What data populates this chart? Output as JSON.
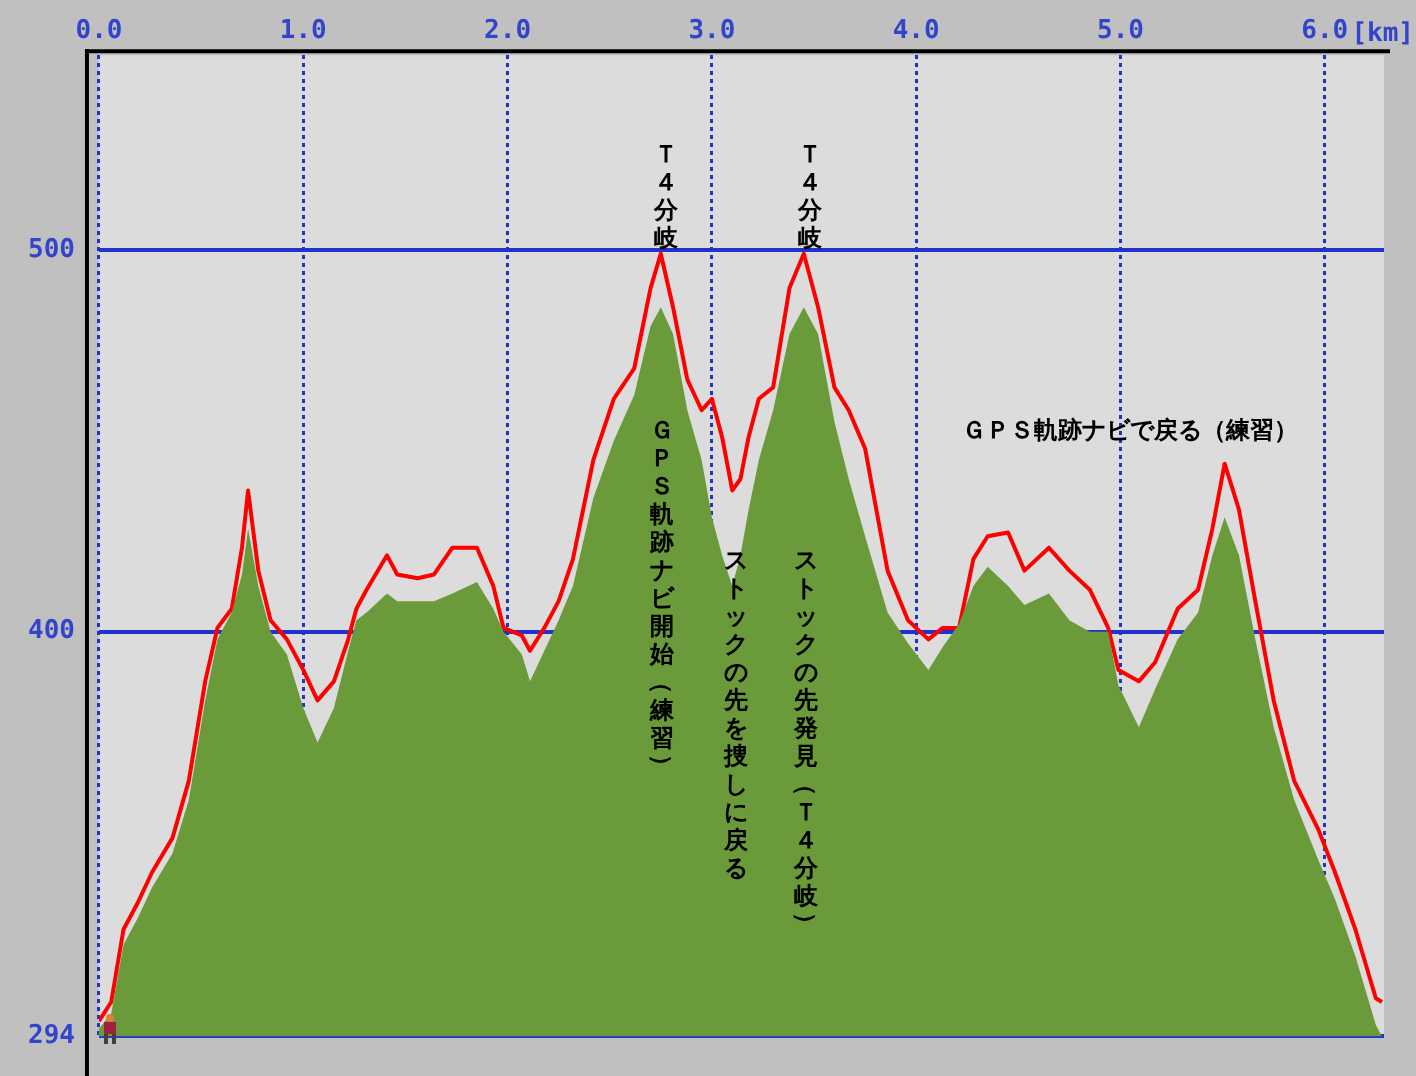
{
  "chart_data": {
    "type": "area",
    "xlabel": "[km]",
    "xlim": [
      0,
      6.29
    ],
    "xticks": [
      {
        "value": 0,
        "label": "0.0"
      },
      {
        "value": 1,
        "label": "1.0"
      },
      {
        "value": 2,
        "label": "2.0"
      },
      {
        "value": 3,
        "label": "3.0"
      },
      {
        "value": 4,
        "label": "4.0"
      },
      {
        "value": 5,
        "label": "5.0"
      },
      {
        "value": 6,
        "label": "6.0"
      }
    ],
    "ylim": [
      294,
      551
    ],
    "yticks": [
      294,
      400,
      500
    ],
    "grid": true,
    "legend": false,
    "series": [
      {
        "type": "area",
        "color": "#6a9a3a",
        "x": [
          0,
          0.06,
          0.12,
          0.19,
          0.26,
          0.36,
          0.44,
          0.52,
          0.58,
          0.65,
          0.7,
          0.73,
          0.78,
          0.84,
          0.92,
          1.0,
          1.07,
          1.15,
          1.22,
          1.26,
          1.31,
          1.41,
          1.46,
          1.56,
          1.64,
          1.73,
          1.85,
          1.93,
          1.98,
          2.07,
          2.11,
          2.18,
          2.25,
          2.32,
          2.42,
          2.52,
          2.62,
          2.7,
          2.75,
          2.81,
          2.88,
          2.95,
          3.0,
          3.05,
          3.1,
          3.14,
          3.18,
          3.23,
          3.3,
          3.38,
          3.45,
          3.52,
          3.6,
          3.67,
          3.75,
          3.86,
          3.96,
          4.06,
          4.13,
          4.21,
          4.28,
          4.35,
          4.45,
          4.53,
          4.65,
          4.75,
          4.85,
          4.94,
          4.99,
          5.09,
          5.17,
          5.28,
          5.38,
          5.45,
          5.51,
          5.58,
          5.66,
          5.75,
          5.85,
          5.97,
          6.05,
          6.15,
          6.25,
          6.28
        ],
        "values": [
          296,
          300,
          318,
          325,
          333,
          342,
          356,
          382,
          398,
          405,
          415,
          427,
          412,
          400,
          394,
          380,
          371,
          380,
          395,
          403,
          405,
          410,
          408,
          408,
          408,
          410,
          413,
          406,
          400,
          394,
          387,
          395,
          403,
          412,
          435,
          450,
          462,
          480,
          485,
          478,
          458,
          445,
          430,
          420,
          412,
          420,
          432,
          445,
          458,
          478,
          485,
          478,
          455,
          440,
          425,
          405,
          397,
          390,
          396,
          402,
          412,
          417,
          412,
          407,
          410,
          403,
          400,
          400,
          386,
          375,
          385,
          398,
          405,
          420,
          430,
          420,
          398,
          375,
          356,
          340,
          330,
          315,
          297,
          294
        ]
      },
      {
        "type": "line",
        "color": "#ff0000",
        "marker": "none",
        "line_style": "solid",
        "x": [
          0,
          0.06,
          0.12,
          0.19,
          0.26,
          0.36,
          0.44,
          0.52,
          0.58,
          0.65,
          0.7,
          0.73,
          0.78,
          0.84,
          0.92,
          1.0,
          1.07,
          1.15,
          1.22,
          1.26,
          1.31,
          1.41,
          1.46,
          1.56,
          1.64,
          1.73,
          1.85,
          1.93,
          1.98,
          2.07,
          2.11,
          2.18,
          2.25,
          2.32,
          2.42,
          2.52,
          2.62,
          2.7,
          2.75,
          2.81,
          2.88,
          2.95,
          3.0,
          3.05,
          3.1,
          3.14,
          3.18,
          3.23,
          3.3,
          3.38,
          3.45,
          3.52,
          3.6,
          3.67,
          3.75,
          3.86,
          3.96,
          4.06,
          4.13,
          4.21,
          4.28,
          4.35,
          4.45,
          4.53,
          4.65,
          4.75,
          4.85,
          4.94,
          4.99,
          5.09,
          5.17,
          5.28,
          5.38,
          5.45,
          5.51,
          5.58,
          5.66,
          5.75,
          5.85,
          5.97,
          6.05,
          6.15,
          6.25,
          6.28
        ],
        "values": [
          298,
          303,
          322,
          329,
          337,
          346,
          361,
          387,
          401,
          406,
          422,
          437,
          416,
          403,
          398,
          390,
          382,
          387,
          398,
          406,
          411,
          420,
          415,
          414,
          415,
          422,
          422,
          412,
          401,
          399,
          395,
          401,
          408,
          419,
          445,
          461,
          469,
          490,
          499,
          485,
          466,
          458,
          461,
          451,
          437,
          440,
          451,
          461,
          464,
          490,
          499,
          485,
          464,
          458,
          448,
          416,
          403,
          398,
          401,
          401,
          419,
          425,
          426,
          416,
          422,
          416,
          411,
          401,
          390,
          387,
          392,
          406,
          411,
          427,
          444,
          432,
          408,
          382,
          361,
          348,
          337,
          322,
          304,
          303
        ]
      }
    ],
    "annotations": [
      "Ｔ４分岐",
      "Ｔ４分岐",
      "ＧＰＳ軌跡ナビ開始（練習）",
      "ストックの先を捜しに戻る",
      "ストックの先発見（Ｔ４分岐）",
      "ＧＰＳ軌跡ナビで戻る（練習）"
    ]
  }
}
